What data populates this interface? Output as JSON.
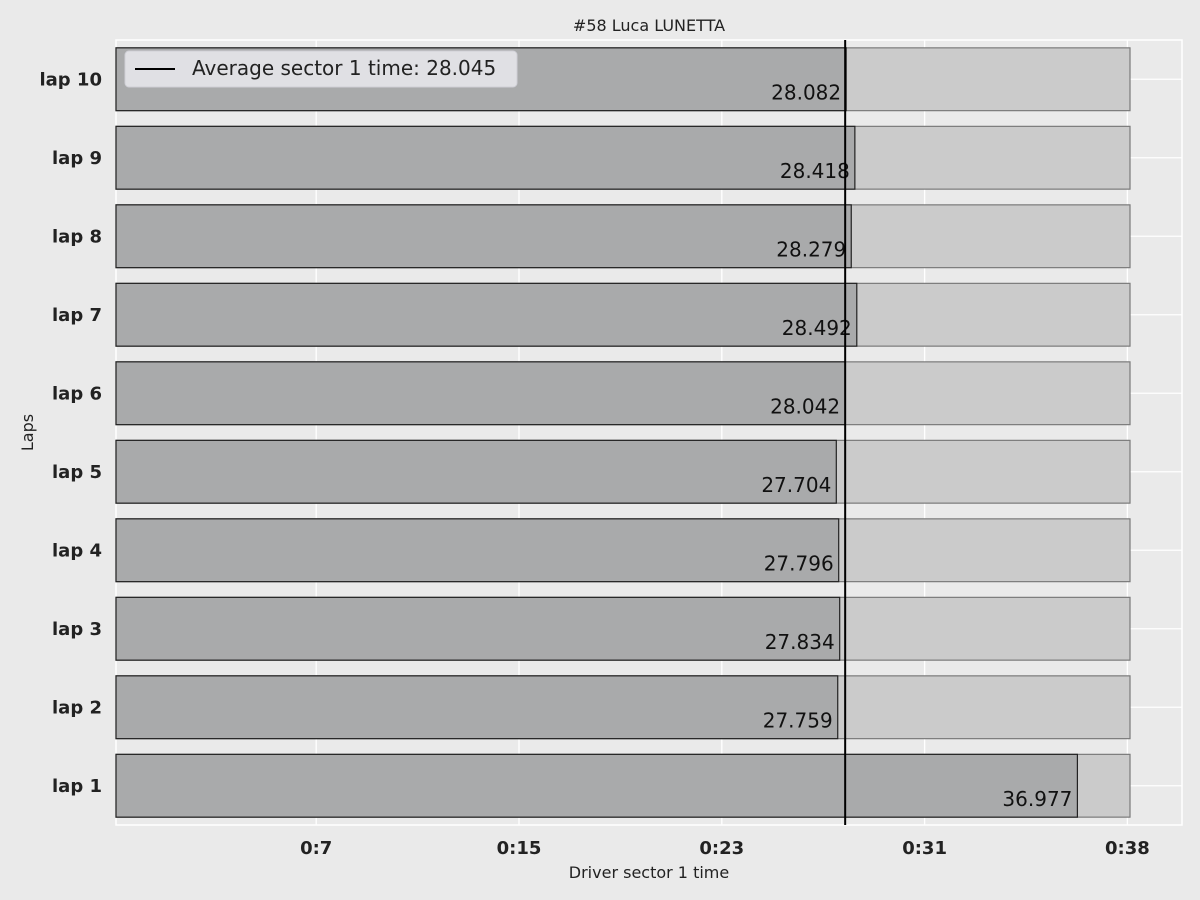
{
  "chart_data": {
    "type": "bar",
    "orientation": "horizontal",
    "title": "#58  Luca LUNETTA",
    "xlabel": "Driver sector 1 time",
    "ylabel": "Laps",
    "categories": [
      "lap 1",
      "lap 2",
      "lap 3",
      "lap 4",
      "lap 5",
      "lap 6",
      "lap 7",
      "lap 8",
      "lap 9",
      "lap 10"
    ],
    "series": [
      {
        "values": [
          36.977,
          27.759,
          27.834,
          27.796,
          27.704,
          28.042,
          28.492,
          28.279,
          28.418,
          28.082
        ],
        "labels": [
          "36.977",
          "27.759",
          "27.834",
          "27.796",
          "27.704",
          "28.042",
          "28.492",
          "28.279",
          "28.418",
          "28.082"
        ]
      },
      {
        "values": [
          39,
          39,
          39,
          39,
          39,
          39,
          39,
          39,
          39,
          39
        ]
      }
    ],
    "average": {
      "value": 28.045,
      "label": "Average sector 1 time: 28.045"
    },
    "xticks": [
      {
        "value": 7.7,
        "label": "0:7"
      },
      {
        "value": 15.5,
        "label": "0:15"
      },
      {
        "value": 23.3,
        "label": "0:23"
      },
      {
        "value": 31.1,
        "label": "0:31"
      },
      {
        "value": 38.9,
        "label": "0:38"
      }
    ],
    "xlim": [
      0,
      41
    ],
    "grid": true,
    "legend_position": "top-left",
    "colors": {
      "background": "#eaeaea",
      "plot_background": "#eaeaea",
      "grid": "#ffffff",
      "bar_fill": "#a9aaab",
      "bar_edge": "#222222",
      "ghost_fill": "#cbcbcb",
      "ghost_edge": "#7a7a7a",
      "avg_line": "#000000"
    }
  }
}
